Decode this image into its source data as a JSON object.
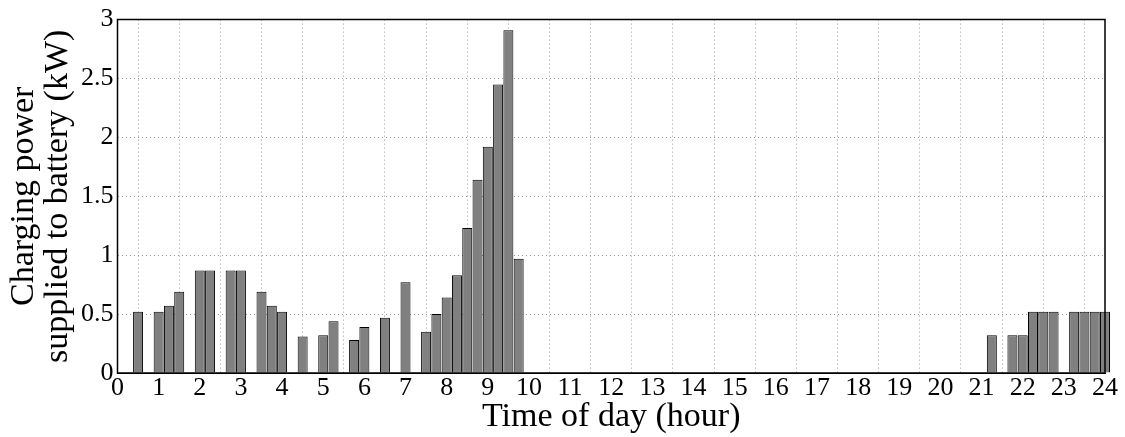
{
  "chart_data": {
    "type": "bar",
    "xlabel": "Time of day (hour)",
    "ylabel": "Charging power\nsupplied to battery (kW)",
    "x": [
      0.5,
      1,
      1.25,
      1.5,
      2,
      2.25,
      2.75,
      3,
      3.5,
      3.75,
      4,
      4.5,
      5,
      5.25,
      5.75,
      6,
      6.5,
      7,
      7.5,
      7.75,
      8,
      8.25,
      8.5,
      8.75,
      9,
      9.25,
      9.5,
      9.75,
      21.25,
      21.75,
      22,
      22.25,
      22.5,
      22.75,
      23.25,
      23.5,
      23.75,
      24
    ],
    "values": [
      0.52,
      0.52,
      0.57,
      0.69,
      0.87,
      0.87,
      0.87,
      0.87,
      0.69,
      0.57,
      0.52,
      0.31,
      0.32,
      0.44,
      0.28,
      0.39,
      0.47,
      0.77,
      0.35,
      0.5,
      0.64,
      0.83,
      1.23,
      1.64,
      1.92,
      2.45,
      2.91,
      0.97,
      0.32,
      0.32,
      0.32,
      0.52,
      0.52,
      0.52,
      0.52,
      0.52,
      0.52,
      0.52
    ],
    "color": "#808080",
    "xlim": [
      0,
      24
    ],
    "xticks": [
      0,
      1,
      2,
      3,
      4,
      5,
      6,
      7,
      8,
      9,
      10,
      11,
      12,
      13,
      14,
      15,
      16,
      17,
      18,
      19,
      20,
      21,
      22,
      23,
      24
    ],
    "ylim": [
      0,
      3
    ],
    "yticks": [
      0,
      0.5,
      1,
      1.5,
      2,
      2.5,
      3
    ],
    "grid": true
  }
}
